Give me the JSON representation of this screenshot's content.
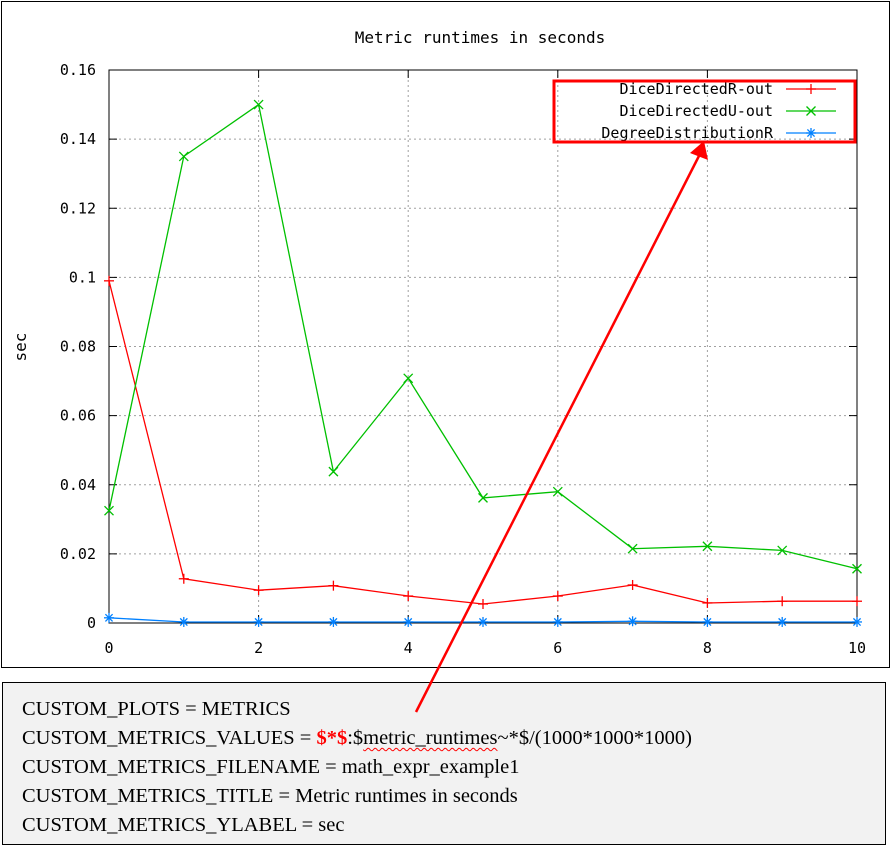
{
  "chart_data": {
    "type": "line",
    "title": "Metric runtimes in seconds",
    "xlabel": "",
    "ylabel": "sec",
    "xlim": [
      0,
      10
    ],
    "ylim": [
      0,
      0.16
    ],
    "xticks": [
      "0",
      "2",
      "4",
      "6",
      "8",
      "10"
    ],
    "yticks": [
      "0",
      "0.02",
      "0.04",
      "0.06",
      "0.08",
      "0.1",
      "0.12",
      "0.14",
      "0.16"
    ],
    "grid": true,
    "legend_position": "top-right",
    "x": [
      0,
      1,
      2,
      3,
      4,
      5,
      6,
      7,
      8,
      9,
      10
    ],
    "series": [
      {
        "name": "DiceDirectedR-out",
        "color": "#ff0000",
        "marker": "+",
        "values": [
          0.099,
          0.0128,
          0.0095,
          0.0108,
          0.0078,
          0.0055,
          0.0078,
          0.011,
          0.0058,
          0.0063,
          0.0063
        ]
      },
      {
        "name": "DiceDirectedU-out",
        "color": "#00c000",
        "marker": "x",
        "values": [
          0.0325,
          0.135,
          0.15,
          0.0438,
          0.0708,
          0.0362,
          0.038,
          0.0215,
          0.0222,
          0.021,
          0.0157
        ]
      },
      {
        "name": "DegreeDistributionR",
        "color": "#0080ff",
        "marker": "*",
        "values": [
          0.0015,
          0.0003,
          0.0003,
          0.0003,
          0.0003,
          0.0003,
          0.0003,
          0.0005,
          0.0003,
          0.0003,
          0.0003
        ]
      }
    ]
  },
  "highlight_color": "#ff0000",
  "config": {
    "line1": "CUSTOM_PLOTS = METRICS",
    "line2_prefix": "CUSTOM_METRICS_VALUES = ",
    "line2_highlight": "$*$",
    "line2_mid": ":$",
    "line2_squiggle": "metric_runtimes",
    "line2_suffix": "~*$/(1000*1000*1000)",
    "line3": "CUSTOM_METRICS_FILENAME = math_expr_example1",
    "line4": "CUSTOM_METRICS_TITLE = Metric runtimes in seconds",
    "line5": "CUSTOM_METRICS_YLABEL = sec"
  }
}
